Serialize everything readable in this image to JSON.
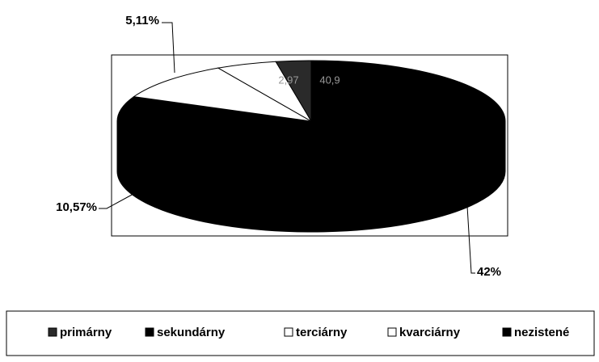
{
  "chart_data": {
    "type": "pie3d",
    "categories": [
      "primárny",
      "sekundárny",
      "terciárny",
      "kvarciárny",
      "nezistené"
    ],
    "values": [
      2.97,
      40.9,
      10.57,
      5.11,
      42
    ],
    "value_labels": [
      "2,97",
      "40,9",
      "10,57%",
      "5,11%",
      "42%"
    ],
    "colors": [
      "#2a2a2a",
      "#000000",
      "#ffffff",
      "#ffffff",
      "#000000"
    ],
    "order": [
      1,
      4,
      2,
      3,
      0
    ]
  }
}
